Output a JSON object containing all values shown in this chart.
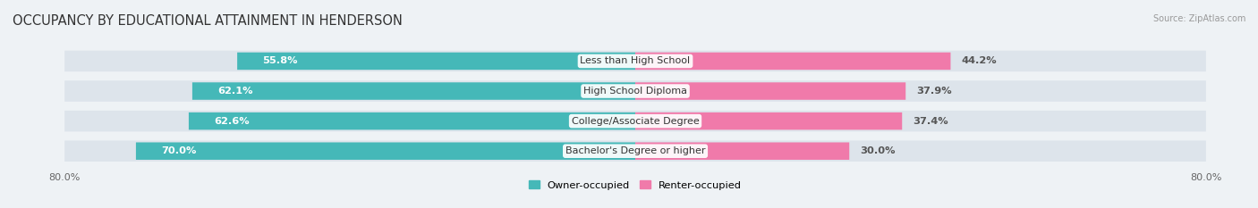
{
  "title": "OCCUPANCY BY EDUCATIONAL ATTAINMENT IN HENDERSON",
  "source": "Source: ZipAtlas.com",
  "categories": [
    "Less than High School",
    "High School Diploma",
    "College/Associate Degree",
    "Bachelor's Degree or higher"
  ],
  "owner_values": [
    55.8,
    62.1,
    62.6,
    70.0
  ],
  "renter_values": [
    44.2,
    37.9,
    37.4,
    30.0
  ],
  "owner_color": "#45b8b8",
  "renter_color": "#f07aaa",
  "owner_label": "Owner-occupied",
  "renter_label": "Renter-occupied",
  "x_left_label": "80.0%",
  "x_right_label": "80.0%",
  "bar_height": 0.58,
  "background_color": "#eef2f5",
  "bar_bg_color": "#dde4eb",
  "title_fontsize": 10.5,
  "label_fontsize": 8.2,
  "axis_fontsize": 8,
  "value_label_color_inside": "#ffffff",
  "value_label_color_outside": "#555555"
}
